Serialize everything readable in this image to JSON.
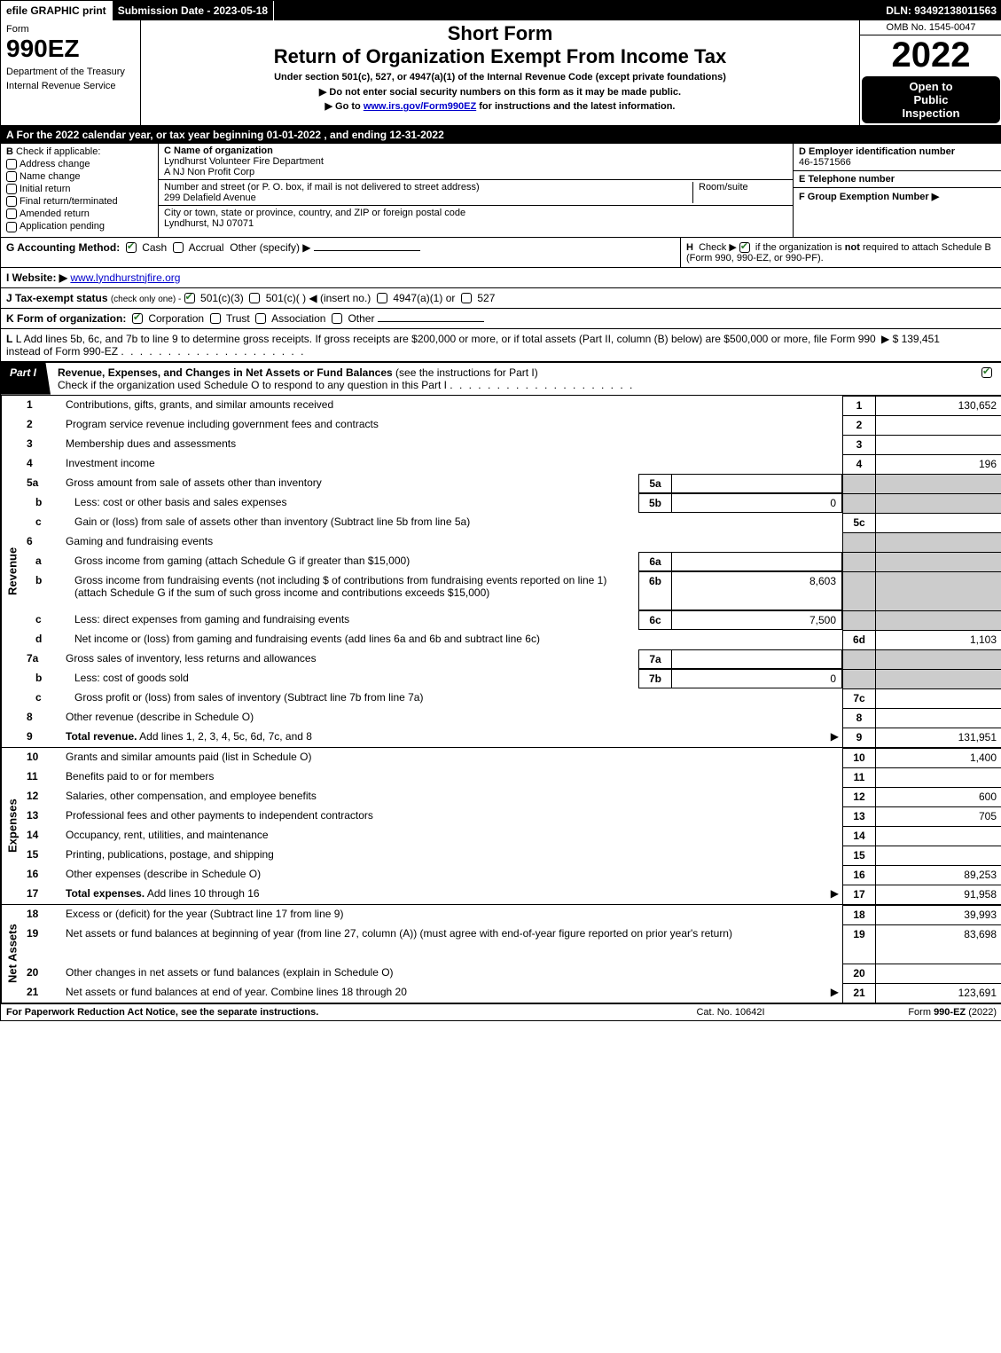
{
  "topbar": {
    "efile": "efile GRAPHIC print",
    "submission_label": "Submission Date - 2023-05-18",
    "dln": "DLN: 93492138011563"
  },
  "header": {
    "form_word": "Form",
    "form_number": "990EZ",
    "dept1": "Department of the Treasury",
    "dept2": "Internal Revenue Service",
    "short_form": "Short Form",
    "main_title": "Return of Organization Exempt From Income Tax",
    "subtitle": "Under section 501(c), 527, or 4947(a)(1) of the Internal Revenue Code (except private foundations)",
    "instr1": "▶ Do not enter social security numbers on this form as it may be made public.",
    "instr2_pre": "▶ Go to ",
    "instr2_link": "www.irs.gov/Form990EZ",
    "instr2_post": " for instructions and the latest information.",
    "omb": "OMB No. 1545-0047",
    "year": "2022",
    "open1": "Open to",
    "open2": "Public",
    "open3": "Inspection"
  },
  "row_a": "A  For the 2022 calendar year, or tax year beginning 01-01-2022  , and ending 12-31-2022",
  "section_b": {
    "label": "B",
    "check_if": "Check if applicable:",
    "options": [
      "Address change",
      "Name change",
      "Initial return",
      "Final return/terminated",
      "Amended return",
      "Application pending"
    ]
  },
  "section_c": {
    "c_label": "C Name of organization",
    "org_name": "Lyndhurst Volunteer Fire Department",
    "org_sub": "A NJ Non Profit Corp",
    "street_label": "Number and street (or P. O. box, if mail is not delivered to street address)",
    "room_label": "Room/suite",
    "street": "299 Delafield Avenue",
    "city_label": "City or town, state or province, country, and ZIP or foreign postal code",
    "city": "Lyndhurst, NJ  07071"
  },
  "section_de": {
    "d_label": "D Employer identification number",
    "ein": "46-1571566",
    "e_label": "E Telephone number",
    "phone": "",
    "f_label": "F Group Exemption Number  ▶",
    "f_val": ""
  },
  "row_gh": {
    "g_label": "G Accounting Method:",
    "g_cash": "Cash",
    "g_accrual": "Accrual",
    "g_other": "Other (specify) ▶",
    "h_label": "H",
    "h_text1": "Check ▶",
    "h_text2": "if the organization is ",
    "h_not": "not",
    "h_text3": " required to attach Schedule B",
    "h_text4": "(Form 990, 990-EZ, or 990-PF)."
  },
  "row_i": {
    "label": "I Website: ▶",
    "url": "www.lyndhurstnjfire.org"
  },
  "row_j": {
    "label": "J Tax-exempt status",
    "sub": "(check only one) -",
    "opt1": "501(c)(3)",
    "opt2": "501(c)(  ) ◀ (insert no.)",
    "opt3": "4947(a)(1) or",
    "opt4": "527"
  },
  "row_k": {
    "label": "K Form of organization:",
    "opt1": "Corporation",
    "opt2": "Trust",
    "opt3": "Association",
    "opt4": "Other"
  },
  "row_l": {
    "text": "L Add lines 5b, 6c, and 7b to line 9 to determine gross receipts. If gross receipts are $200,000 or more, or if total assets (Part II, column (B) below) are $500,000 or more, file Form 990 instead of Form 990-EZ",
    "amount": "▶ $ 139,451"
  },
  "part1": {
    "tab": "Part I",
    "title_bold": "Revenue, Expenses, and Changes in Net Assets or Fund Balances",
    "title_rest": " (see the instructions for Part I)",
    "subtitle": "Check if the organization used Schedule O to respond to any question in this Part I"
  },
  "vlabels": {
    "revenue": "Revenue",
    "expenses": "Expenses",
    "netassets": "Net Assets"
  },
  "revenue_lines": [
    {
      "num": "1",
      "desc": "Contributions, gifts, grants, and similar amounts received",
      "rnum": "1",
      "rval": "130,652"
    },
    {
      "num": "2",
      "desc": "Program service revenue including government fees and contracts",
      "rnum": "2",
      "rval": ""
    },
    {
      "num": "3",
      "desc": "Membership dues and assessments",
      "rnum": "3",
      "rval": ""
    },
    {
      "num": "4",
      "desc": "Investment income",
      "rnum": "4",
      "rval": "196"
    },
    {
      "num": "5a",
      "desc": "Gross amount from sale of assets other than inventory",
      "mid": "5a",
      "midval": "",
      "shade": true
    },
    {
      "num": "b",
      "sub": true,
      "desc": "Less: cost or other basis and sales expenses",
      "mid": "5b",
      "midval": "0",
      "shade": true
    },
    {
      "num": "c",
      "sub": true,
      "desc": "Gain or (loss) from sale of assets other than inventory (Subtract line 5b from line 5a)",
      "rnum": "5c",
      "rval": ""
    },
    {
      "num": "6",
      "desc": "Gaming and fundraising events",
      "shade": true,
      "norval": true
    },
    {
      "num": "a",
      "sub": true,
      "desc": "Gross income from gaming (attach Schedule G if greater than $15,000)",
      "mid": "6a",
      "midval": "",
      "shade": true
    },
    {
      "num": "b",
      "sub": true,
      "desc": "Gross income from fundraising events (not including $                      of contributions from fundraising events reported on line 1) (attach Schedule G if the sum of such gross income and contributions exceeds $15,000)",
      "mid": "6b",
      "midval": "8,603",
      "shade": true,
      "tall": true
    },
    {
      "num": "c",
      "sub": true,
      "desc": "Less: direct expenses from gaming and fundraising events",
      "mid": "6c",
      "midval": "7,500",
      "shade": true
    },
    {
      "num": "d",
      "sub": true,
      "desc": "Net income or (loss) from gaming and fundraising events (add lines 6a and 6b and subtract line 6c)",
      "rnum": "6d",
      "rval": "1,103"
    },
    {
      "num": "7a",
      "desc": "Gross sales of inventory, less returns and allowances",
      "mid": "7a",
      "midval": "",
      "shade": true
    },
    {
      "num": "b",
      "sub": true,
      "desc": "Less: cost of goods sold",
      "mid": "7b",
      "midval": "0",
      "shade": true
    },
    {
      "num": "c",
      "sub": true,
      "desc": "Gross profit or (loss) from sales of inventory (Subtract line 7b from line 7a)",
      "rnum": "7c",
      "rval": ""
    },
    {
      "num": "8",
      "desc": "Other revenue (describe in Schedule O)",
      "rnum": "8",
      "rval": ""
    },
    {
      "num": "9",
      "desc": "Total revenue. Add lines 1, 2, 3, 4, 5c, 6d, 7c, and 8",
      "rnum": "9",
      "rval": "131,951",
      "bold": true,
      "arrow": true
    }
  ],
  "expense_lines": [
    {
      "num": "10",
      "desc": "Grants and similar amounts paid (list in Schedule O)",
      "rnum": "10",
      "rval": "1,400"
    },
    {
      "num": "11",
      "desc": "Benefits paid to or for members",
      "rnum": "11",
      "rval": ""
    },
    {
      "num": "12",
      "desc": "Salaries, other compensation, and employee benefits",
      "rnum": "12",
      "rval": "600"
    },
    {
      "num": "13",
      "desc": "Professional fees and other payments to independent contractors",
      "rnum": "13",
      "rval": "705"
    },
    {
      "num": "14",
      "desc": "Occupancy, rent, utilities, and maintenance",
      "rnum": "14",
      "rval": ""
    },
    {
      "num": "15",
      "desc": "Printing, publications, postage, and shipping",
      "rnum": "15",
      "rval": ""
    },
    {
      "num": "16",
      "desc": "Other expenses (describe in Schedule O)",
      "rnum": "16",
      "rval": "89,253"
    },
    {
      "num": "17",
      "desc": "Total expenses. Add lines 10 through 16",
      "rnum": "17",
      "rval": "91,958",
      "bold": true,
      "arrow": true
    }
  ],
  "netasset_lines": [
    {
      "num": "18",
      "desc": "Excess or (deficit) for the year (Subtract line 17 from line 9)",
      "rnum": "18",
      "rval": "39,993"
    },
    {
      "num": "19",
      "desc": "Net assets or fund balances at beginning of year (from line 27, column (A)) (must agree with end-of-year figure reported on prior year's return)",
      "rnum": "19",
      "rval": "83,698",
      "tall": true
    },
    {
      "num": "20",
      "desc": "Other changes in net assets or fund balances (explain in Schedule O)",
      "rnum": "20",
      "rval": ""
    },
    {
      "num": "21",
      "desc": "Net assets or fund balances at end of year. Combine lines 18 through 20",
      "rnum": "21",
      "rval": "123,691",
      "arrow": true
    }
  ],
  "footer": {
    "left": "For Paperwork Reduction Act Notice, see the separate instructions.",
    "center": "Cat. No. 10642I",
    "right_pre": "Form ",
    "right_bold": "990-EZ",
    "right_post": " (2022)"
  }
}
